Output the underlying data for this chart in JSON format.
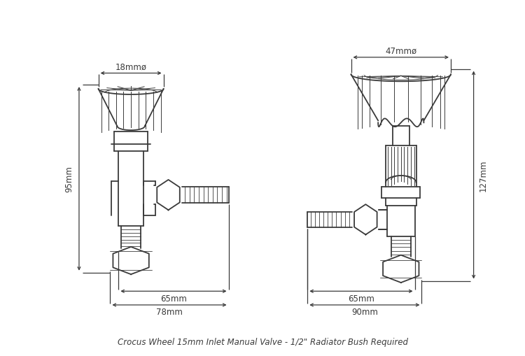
{
  "title": "Crocus Wheel 15mm Inlet Manual Valve - 1/2\" Radiator Bush Required",
  "title_fontsize": 8.5,
  "bg_color": "#ffffff",
  "line_color": "#3a3a3a",
  "dim_color": "#3a3a3a",
  "fig_width": 7.5,
  "fig_height": 5.1,
  "dims_left": {
    "width_top": "18mmø",
    "width_mid": "65mm",
    "width_bot": "78mm",
    "height": "95mm"
  },
  "dims_right": {
    "width_top": "47mmø",
    "width_mid": "65mm",
    "width_bot": "90mm",
    "height": "127mm"
  }
}
